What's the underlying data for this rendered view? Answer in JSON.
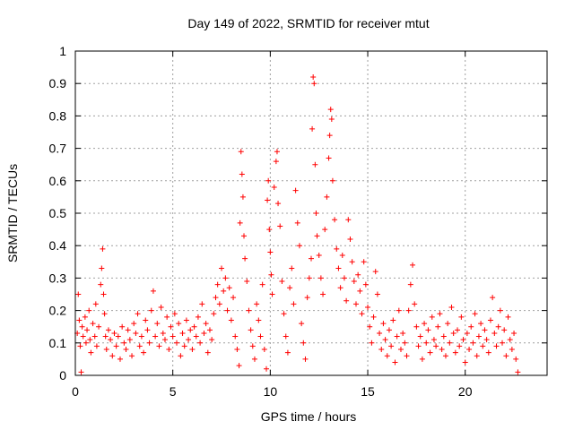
{
  "chart_data": {
    "type": "scatter",
    "title": "Day 149 of 2022, SRMTID for receiver mtut",
    "xlabel": "GPS time / hours",
    "ylabel": "SRMTID / TECUs",
    "xlim": [
      0,
      24.2
    ],
    "ylim": [
      0,
      1
    ],
    "xticks": [
      0,
      5,
      10,
      15,
      20
    ],
    "xtick_labels": [
      "0",
      "5",
      "10",
      "15",
      "20"
    ],
    "yticks": [
      0,
      0.1,
      0.2,
      0.3,
      0.4,
      0.5,
      0.6,
      0.7,
      0.8,
      0.9,
      1
    ],
    "ytick_labels": [
      "0",
      "0.1",
      "0.2",
      "0.3",
      "0.4",
      "0.5",
      "0.6",
      "0.7",
      "0.8",
      "0.9",
      "1"
    ],
    "grid": true,
    "marker": "plus",
    "color": "#ff0000",
    "series": [
      {
        "name": "SRMTID",
        "points": [
          [
            0.1,
            0.13
          ],
          [
            0.15,
            0.25
          ],
          [
            0.2,
            0.17
          ],
          [
            0.25,
            0.09
          ],
          [
            0.3,
            0.01
          ],
          [
            0.35,
            0.15
          ],
          [
            0.4,
            0.12
          ],
          [
            0.5,
            0.18
          ],
          [
            0.55,
            0.1
          ],
          [
            0.6,
            0.14
          ],
          [
            0.7,
            0.2
          ],
          [
            0.75,
            0.11
          ],
          [
            0.8,
            0.07
          ],
          [
            0.9,
            0.16
          ],
          [
            1.0,
            0.12
          ],
          [
            1.05,
            0.22
          ],
          [
            1.1,
            0.09
          ],
          [
            1.2,
            0.15
          ],
          [
            1.3,
            0.28
          ],
          [
            1.35,
            0.33
          ],
          [
            1.4,
            0.39
          ],
          [
            1.45,
            0.25
          ],
          [
            1.5,
            0.19
          ],
          [
            1.55,
            0.12
          ],
          [
            1.6,
            0.08
          ],
          [
            1.7,
            0.14
          ],
          [
            1.8,
            0.11
          ],
          [
            1.9,
            0.06
          ],
          [
            2.0,
            0.13
          ],
          [
            2.1,
            0.09
          ],
          [
            2.2,
            0.12
          ],
          [
            2.3,
            0.05
          ],
          [
            2.4,
            0.15
          ],
          [
            2.5,
            0.1
          ],
          [
            2.6,
            0.08
          ],
          [
            2.7,
            0.14
          ],
          [
            2.8,
            0.11
          ],
          [
            2.9,
            0.06
          ],
          [
            3.0,
            0.16
          ],
          [
            3.1,
            0.13
          ],
          [
            3.2,
            0.19
          ],
          [
            3.3,
            0.09
          ],
          [
            3.4,
            0.12
          ],
          [
            3.5,
            0.07
          ],
          [
            3.6,
            0.17
          ],
          [
            3.7,
            0.14
          ],
          [
            3.8,
            0.1
          ],
          [
            3.9,
            0.2
          ],
          [
            4.0,
            0.26
          ],
          [
            4.1,
            0.12
          ],
          [
            4.2,
            0.16
          ],
          [
            4.3,
            0.09
          ],
          [
            4.4,
            0.21
          ],
          [
            4.5,
            0.13
          ],
          [
            4.6,
            0.11
          ],
          [
            4.7,
            0.18
          ],
          [
            4.8,
            0.08
          ],
          [
            4.9,
            0.15
          ],
          [
            5.0,
            0.12
          ],
          [
            5.1,
            0.19
          ],
          [
            5.2,
            0.1
          ],
          [
            5.3,
            0.16
          ],
          [
            5.4,
            0.06
          ],
          [
            5.5,
            0.13
          ],
          [
            5.6,
            0.09
          ],
          [
            5.7,
            0.17
          ],
          [
            5.8,
            0.11
          ],
          [
            5.9,
            0.14
          ],
          [
            6.0,
            0.08
          ],
          [
            6.1,
            0.15
          ],
          [
            6.2,
            0.12
          ],
          [
            6.3,
            0.18
          ],
          [
            6.4,
            0.1
          ],
          [
            6.5,
            0.22
          ],
          [
            6.6,
            0.13
          ],
          [
            6.7,
            0.16
          ],
          [
            6.8,
            0.07
          ],
          [
            6.9,
            0.14
          ],
          [
            7.0,
            0.11
          ],
          [
            7.1,
            0.19
          ],
          [
            7.2,
            0.24
          ],
          [
            7.3,
            0.28
          ],
          [
            7.4,
            0.22
          ],
          [
            7.5,
            0.33
          ],
          [
            7.6,
            0.26
          ],
          [
            7.7,
            0.3
          ],
          [
            7.8,
            0.2
          ],
          [
            7.9,
            0.27
          ],
          [
            8.0,
            0.17
          ],
          [
            8.1,
            0.24
          ],
          [
            8.2,
            0.12
          ],
          [
            8.3,
            0.08
          ],
          [
            8.4,
            0.03
          ],
          [
            8.45,
            0.47
          ],
          [
            8.5,
            0.69
          ],
          [
            8.55,
            0.62
          ],
          [
            8.6,
            0.55
          ],
          [
            8.65,
            0.43
          ],
          [
            8.7,
            0.36
          ],
          [
            8.8,
            0.29
          ],
          [
            8.9,
            0.2
          ],
          [
            9.0,
            0.14
          ],
          [
            9.1,
            0.09
          ],
          [
            9.2,
            0.05
          ],
          [
            9.3,
            0.22
          ],
          [
            9.4,
            0.17
          ],
          [
            9.5,
            0.12
          ],
          [
            9.6,
            0.28
          ],
          [
            9.7,
            0.08
          ],
          [
            9.8,
            0.02
          ],
          [
            9.85,
            0.54
          ],
          [
            9.9,
            0.6
          ],
          [
            9.95,
            0.45
          ],
          [
            10.0,
            0.38
          ],
          [
            10.05,
            0.31
          ],
          [
            10.1,
            0.25
          ],
          [
            10.2,
            0.58
          ],
          [
            10.3,
            0.66
          ],
          [
            10.35,
            0.69
          ],
          [
            10.4,
            0.53
          ],
          [
            10.5,
            0.46
          ],
          [
            10.6,
            0.29
          ],
          [
            10.7,
            0.19
          ],
          [
            10.8,
            0.12
          ],
          [
            10.9,
            0.07
          ],
          [
            11.0,
            0.27
          ],
          [
            11.1,
            0.33
          ],
          [
            11.2,
            0.22
          ],
          [
            11.3,
            0.57
          ],
          [
            11.4,
            0.47
          ],
          [
            11.5,
            0.4
          ],
          [
            11.6,
            0.16
          ],
          [
            11.7,
            0.1
          ],
          [
            11.8,
            0.05
          ],
          [
            11.9,
            0.24
          ],
          [
            12.0,
            0.3
          ],
          [
            12.1,
            0.36
          ],
          [
            12.15,
            0.76
          ],
          [
            12.2,
            0.92
          ],
          [
            12.25,
            0.9
          ],
          [
            12.3,
            0.65
          ],
          [
            12.35,
            0.5
          ],
          [
            12.4,
            0.43
          ],
          [
            12.5,
            0.37
          ],
          [
            12.6,
            0.3
          ],
          [
            12.7,
            0.25
          ],
          [
            12.8,
            0.45
          ],
          [
            12.9,
            0.55
          ],
          [
            13.0,
            0.67
          ],
          [
            13.05,
            0.74
          ],
          [
            13.1,
            0.82
          ],
          [
            13.15,
            0.79
          ],
          [
            13.2,
            0.6
          ],
          [
            13.3,
            0.48
          ],
          [
            13.4,
            0.39
          ],
          [
            13.5,
            0.33
          ],
          [
            13.6,
            0.27
          ],
          [
            13.7,
            0.37
          ],
          [
            13.8,
            0.3
          ],
          [
            13.9,
            0.23
          ],
          [
            14.0,
            0.48
          ],
          [
            14.1,
            0.42
          ],
          [
            14.2,
            0.35
          ],
          [
            14.3,
            0.29
          ],
          [
            14.4,
            0.22
          ],
          [
            14.5,
            0.31
          ],
          [
            14.6,
            0.26
          ],
          [
            14.7,
            0.19
          ],
          [
            14.8,
            0.35
          ],
          [
            14.9,
            0.28
          ],
          [
            15.0,
            0.21
          ],
          [
            15.1,
            0.15
          ],
          [
            15.2,
            0.1
          ],
          [
            15.3,
            0.18
          ],
          [
            15.4,
            0.32
          ],
          [
            15.5,
            0.25
          ],
          [
            15.6,
            0.13
          ],
          [
            15.7,
            0.08
          ],
          [
            15.8,
            0.16
          ],
          [
            15.9,
            0.11
          ],
          [
            16.0,
            0.06
          ],
          [
            16.1,
            0.14
          ],
          [
            16.2,
            0.09
          ],
          [
            16.3,
            0.17
          ],
          [
            16.4,
            0.04
          ],
          [
            16.5,
            0.12
          ],
          [
            16.6,
            0.2
          ],
          [
            16.7,
            0.08
          ],
          [
            16.8,
            0.13
          ],
          [
            16.9,
            0.1
          ],
          [
            17.0,
            0.06
          ],
          [
            17.1,
            0.2
          ],
          [
            17.2,
            0.28
          ],
          [
            17.3,
            0.34
          ],
          [
            17.4,
            0.22
          ],
          [
            17.5,
            0.15
          ],
          [
            17.6,
            0.09
          ],
          [
            17.7,
            0.12
          ],
          [
            17.8,
            0.05
          ],
          [
            17.9,
            0.16
          ],
          [
            18.0,
            0.1
          ],
          [
            18.1,
            0.14
          ],
          [
            18.2,
            0.07
          ],
          [
            18.3,
            0.18
          ],
          [
            18.4,
            0.11
          ],
          [
            18.5,
            0.09
          ],
          [
            18.6,
            0.15
          ],
          [
            18.7,
            0.19
          ],
          [
            18.8,
            0.08
          ],
          [
            18.9,
            0.12
          ],
          [
            19.0,
            0.06
          ],
          [
            19.1,
            0.16
          ],
          [
            19.2,
            0.1
          ],
          [
            19.3,
            0.21
          ],
          [
            19.4,
            0.13
          ],
          [
            19.5,
            0.07
          ],
          [
            19.6,
            0.14
          ],
          [
            19.7,
            0.09
          ],
          [
            19.8,
            0.18
          ],
          [
            19.9,
            0.11
          ],
          [
            20.0,
            0.04
          ],
          [
            20.1,
            0.13
          ],
          [
            20.2,
            0.08
          ],
          [
            20.3,
            0.15
          ],
          [
            20.4,
            0.1
          ],
          [
            20.5,
            0.19
          ],
          [
            20.6,
            0.06
          ],
          [
            20.7,
            0.12
          ],
          [
            20.8,
            0.16
          ],
          [
            20.9,
            0.09
          ],
          [
            21.0,
            0.14
          ],
          [
            21.1,
            0.11
          ],
          [
            21.2,
            0.07
          ],
          [
            21.3,
            0.17
          ],
          [
            21.4,
            0.24
          ],
          [
            21.5,
            0.13
          ],
          [
            21.6,
            0.09
          ],
          [
            21.7,
            0.15
          ],
          [
            21.8,
            0.2
          ],
          [
            21.9,
            0.1
          ],
          [
            22.0,
            0.14
          ],
          [
            22.1,
            0.06
          ],
          [
            22.2,
            0.18
          ],
          [
            22.3,
            0.11
          ],
          [
            22.4,
            0.08
          ],
          [
            22.5,
            0.13
          ],
          [
            22.6,
            0.05
          ],
          [
            22.7,
            0.01
          ]
        ]
      }
    ]
  }
}
